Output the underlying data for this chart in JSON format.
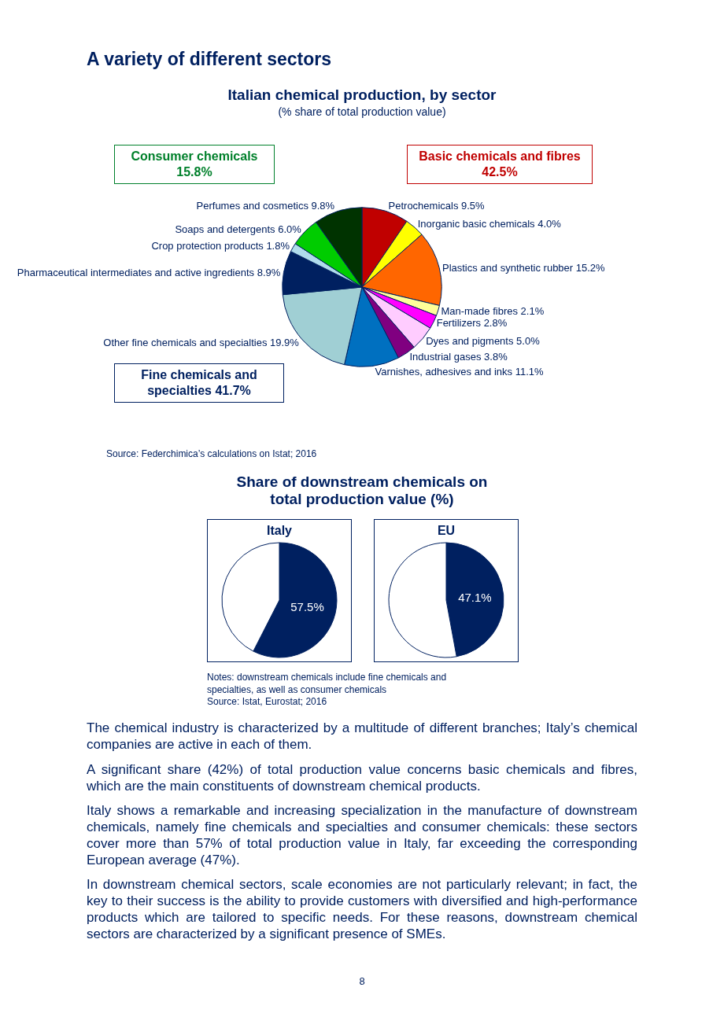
{
  "chart_data": [
    {
      "type": "pie",
      "title": "Italian chemical production, by sector",
      "subtitle": "(% share of total production value)",
      "categories": [
        "Petrochemicals",
        "Inorganic basic chemicals",
        "Plastics and synthetic rubber",
        "Man-made fibres",
        "Fertilizers",
        "Dyes and pigments",
        "Industrial gases",
        "Varnishes, adhesives and inks",
        "Other fine chemicals and specialties",
        "Pharmaceutical intermediates and active ingredients",
        "Crop protection products",
        "Soaps and detergents",
        "Perfumes and cosmetics"
      ],
      "values": [
        9.5,
        4.0,
        15.2,
        2.1,
        2.8,
        5.0,
        3.8,
        11.1,
        19.9,
        8.9,
        1.8,
        6.0,
        9.8
      ],
      "value_labels": [
        "9.5%",
        "4.0%",
        "15.2%",
        "2.1%",
        "2.8%",
        "5.0%",
        "3.8%",
        "11.1%",
        "19.9%",
        "8.9%",
        "1.8%",
        "6.0%",
        "9.8%"
      ],
      "colors": [
        "#c00000",
        "#ffff00",
        "#ff6600",
        "#ffff99",
        "#ff00ff",
        "#ffccff",
        "#800080",
        "#0070c0",
        "#a0cfd4",
        "#002060",
        "#b0dcec",
        "#00cc00",
        "#003300"
      ],
      "legend": false,
      "annotations": [
        "A variety of different sectors",
        "Consumer chemicals 15.8%",
        "Basic chemicals and fibres 42.5%",
        "Fine chemicals and specialties 41.7%",
        "Source: Federchimica’s calculations on Istat; 2016"
      ]
    },
    {
      "type": "pie",
      "title": "Share of downstream chemicals on total production value (%)",
      "subtitle": "Italy",
      "categories": [
        null,
        null
      ],
      "values": [
        57.5,
        42.5
      ],
      "value_labels": [
        "57.5%",
        null
      ],
      "colors": [
        "#002060",
        "#ffffff"
      ],
      "legend": false
    },
    {
      "type": "pie",
      "subtitle": "EU",
      "categories": [
        null,
        null
      ],
      "values": [
        47.1,
        52.9
      ],
      "value_labels": [
        "47.1%",
        null
      ],
      "colors": [
        "#002060",
        "#ffffff"
      ],
      "legend": false,
      "annotations": [
        "Notes: downstream chemicals include fine chemicals and specialties, as well as consumer chemicals",
        "Source: Istat, Eurostat; 2016",
        "The chemical industry is characterized by a multitude of different branches; Italy’s chemical companies are active in each of them.",
        "A significant share (42%) of total production value concerns basic chemicals and fibres, which are the main constituents of downstream chemical products.",
        "Italy shows a remarkable and increasing specialization in the manufacture of downstream chemicals, namely fine chemicals and specialties and consumer chemicals: these sectors cover more than 57% of total production value in Italy, far exceeding the corresponding European average (47%).",
        "In downstream chemical sectors, scale economies are not particularly relevant; in fact, the key to their success is the ability to provide customers with diversified and high-performance products which are tailored to specific needs. For these reasons, downstream chemical sectors are characterized by a significant presence of SMEs.",
        "8"
      ]
    }
  ]
}
